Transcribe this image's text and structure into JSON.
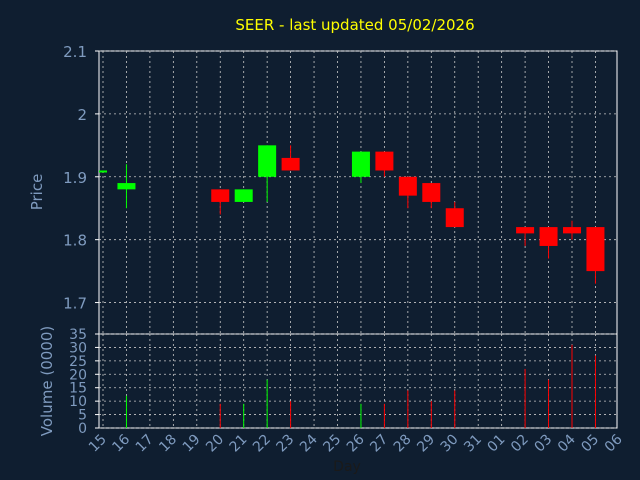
{
  "chart_data": {
    "type": "candlestick",
    "title": "SEER - last updated 05/02/2026",
    "xlabel": "Day",
    "price_panel": {
      "ylabel": "Price",
      "ylim": [
        1.65,
        2.1
      ],
      "yticks": [
        "1.7",
        "1.8",
        "1.9",
        "2",
        "2.1"
      ],
      "grid": true
    },
    "volume_panel": {
      "ylabel": "Volume (0000)",
      "ylim": [
        0,
        35
      ],
      "yticks": [
        "0",
        "5",
        "10",
        "15",
        "20",
        "25",
        "30",
        "35"
      ],
      "grid": true
    },
    "x_ticks": [
      "15",
      "16",
      "17",
      "18",
      "19",
      "20",
      "21",
      "22",
      "23",
      "24",
      "25",
      "26",
      "27",
      "28",
      "29",
      "30",
      "31",
      "01",
      "02",
      "03",
      "04",
      "05",
      "06"
    ],
    "candles": [
      {
        "day": "15",
        "open": 1.91,
        "high": 1.91,
        "low": 1.91,
        "close": 1.91,
        "volume": 0
      },
      {
        "day": "16",
        "open": 1.88,
        "high": 1.92,
        "low": 1.85,
        "close": 1.89,
        "volume": 12
      },
      {
        "day": "20",
        "open": 1.88,
        "high": 1.88,
        "low": 1.84,
        "close": 1.86,
        "volume": 9
      },
      {
        "day": "21",
        "open": 1.86,
        "high": 1.88,
        "low": 1.86,
        "close": 1.88,
        "volume": 9
      },
      {
        "day": "22",
        "open": 1.9,
        "high": 1.95,
        "low": 1.86,
        "close": 1.95,
        "volume": 18
      },
      {
        "day": "23",
        "open": 1.93,
        "high": 1.95,
        "low": 1.91,
        "close": 1.91,
        "volume": 10
      },
      {
        "day": "26",
        "open": 1.9,
        "high": 1.94,
        "low": 1.89,
        "close": 1.94,
        "volume": 9
      },
      {
        "day": "27",
        "open": 1.94,
        "high": 1.94,
        "low": 1.9,
        "close": 1.91,
        "volume": 9
      },
      {
        "day": "28",
        "open": 1.9,
        "high": 1.9,
        "low": 1.85,
        "close": 1.87,
        "volume": 14
      },
      {
        "day": "29",
        "open": 1.89,
        "high": 1.89,
        "low": 1.85,
        "close": 1.86,
        "volume": 10
      },
      {
        "day": "30",
        "open": 1.85,
        "high": 1.86,
        "low": 1.82,
        "close": 1.82,
        "volume": 14
      },
      {
        "day": "02",
        "open": 1.82,
        "high": 1.82,
        "low": 1.79,
        "close": 1.81,
        "volume": 22
      },
      {
        "day": "03",
        "open": 1.82,
        "high": 1.82,
        "low": 1.77,
        "close": 1.79,
        "volume": 18
      },
      {
        "day": "04",
        "open": 1.82,
        "high": 1.83,
        "low": 1.8,
        "close": 1.81,
        "volume": 31
      },
      {
        "day": "05",
        "open": 1.82,
        "high": 1.82,
        "low": 1.73,
        "close": 1.75,
        "volume": 27
      }
    ],
    "colors": {
      "background": "#0f1e30",
      "up": "#00ff00",
      "down": "#ff0000",
      "axis_text": "#7f9bbf",
      "title": "#ffff00",
      "grid": "#c8c8c8",
      "label": "#7f9bbf"
    }
  }
}
